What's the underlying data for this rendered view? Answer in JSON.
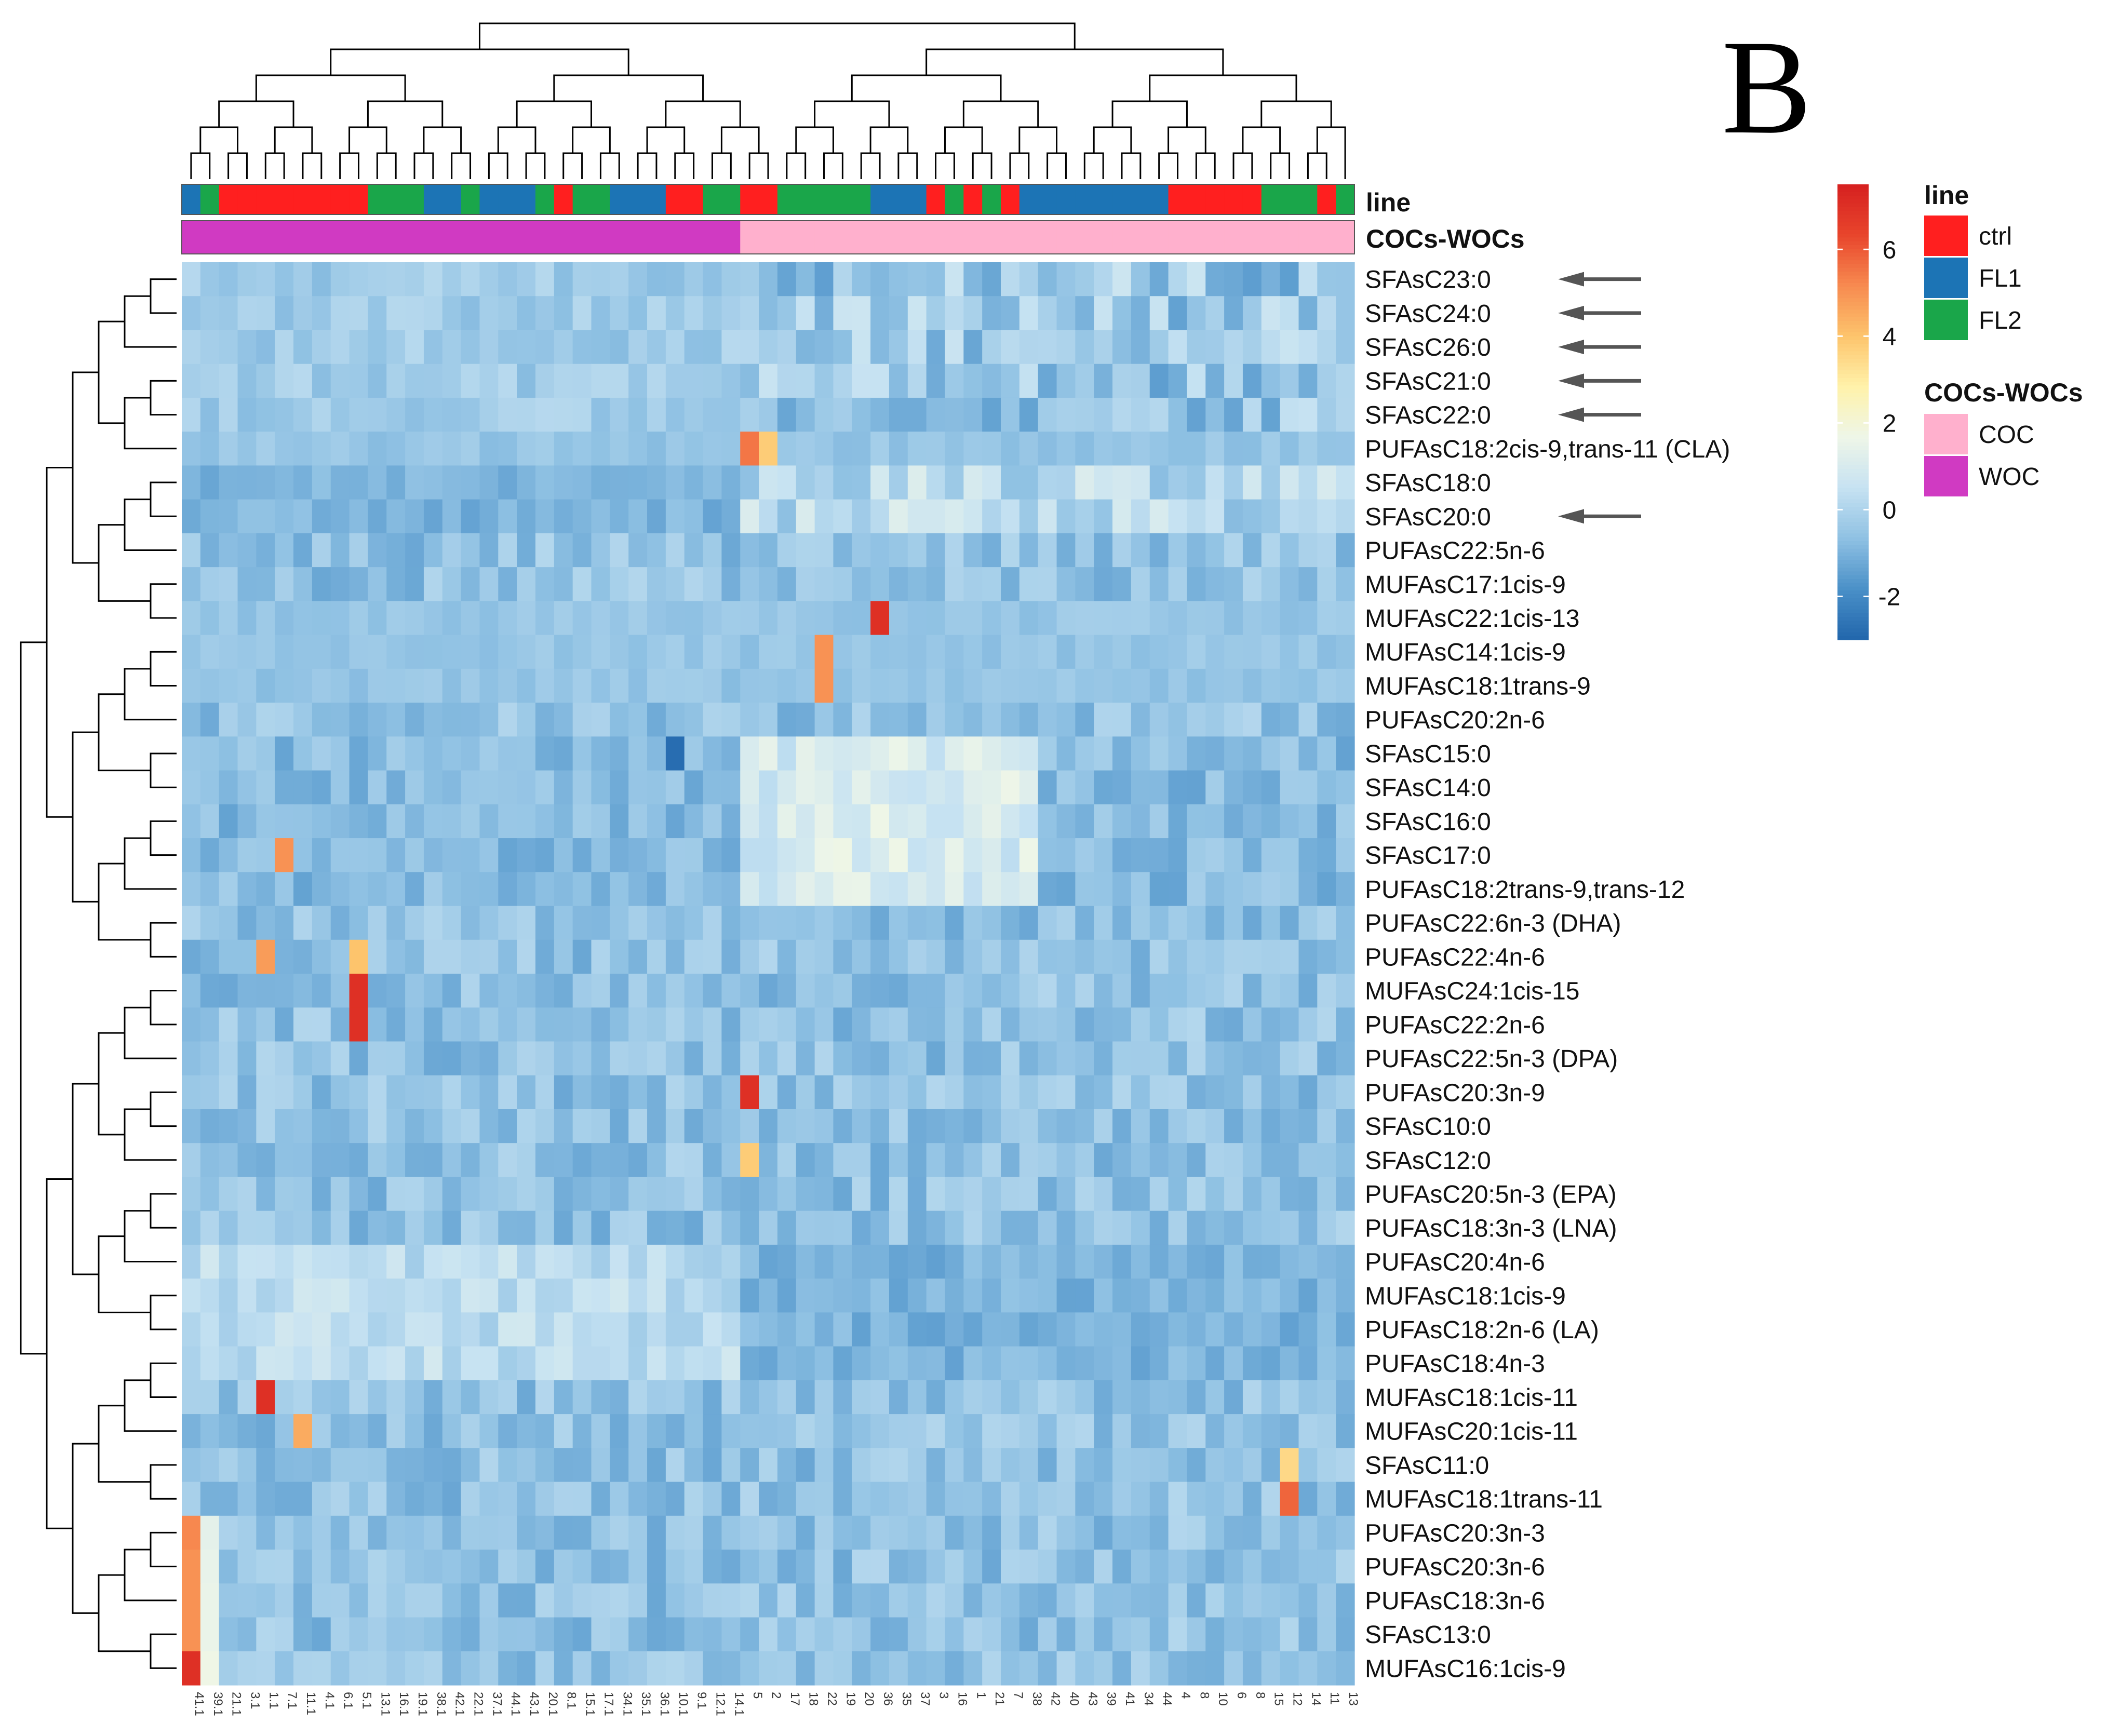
{
  "panel_letter": "B",
  "chart_data": {
    "type": "heatmap",
    "title": "",
    "rows": [
      "SFAsC23:0",
      "SFAsC24:0",
      "SFAsC26:0",
      "SFAsC21:0",
      "SFAsC22:0",
      "PUFAsC18:2cis-9,trans-11 (CLA)",
      "SFAsC18:0",
      "SFAsC20:0",
      "PUFAsC22:5n-6",
      "MUFAsC17:1cis-9",
      "MUFAsC22:1cis-13",
      "MUFAsC14:1cis-9",
      "MUFAsC18:1trans-9",
      "PUFAsC20:2n-6",
      "SFAsC15:0",
      "SFAsC14:0",
      "SFAsC16:0",
      "SFAsC17:0",
      "PUFAsC18:2trans-9,trans-12",
      "PUFAsC22:6n-3 (DHA)",
      "PUFAsC22:4n-6",
      "MUFAsC24:1cis-15",
      "PUFAsC22:2n-6",
      "PUFAsC22:5n-3 (DPA)",
      "PUFAsC20:3n-9",
      "SFAsC10:0",
      "SFAsC12:0",
      "PUFAsC20:5n-3 (EPA)",
      "PUFAsC18:3n-3 (LNA)",
      "PUFAsC20:4n-6",
      "MUFAsC18:1cis-9",
      "PUFAsC18:2n-6 (LA)",
      "PUFAsC18:4n-3",
      "MUFAsC18:1cis-11",
      "MUFAsC20:1cis-11",
      "SFAsC11:0",
      "MUFAsC18:1trans-11",
      "PUFAsC20:3n-3",
      "PUFAsC20:3n-6",
      "PUFAsC18:3n-6",
      "SFAsC13:0",
      "MUFAsC16:1cis-9"
    ],
    "columns": [
      "41.1",
      "39.1",
      "21.1",
      "3.1",
      "1.1",
      "7.1",
      "11.1",
      "4.1",
      "6.1",
      "5.1",
      "13.1",
      "16.1",
      "19.1",
      "38.1",
      "42.1",
      "22.1",
      "37.1",
      "44.1",
      "43.1",
      "20.1",
      "8.1",
      "15.1",
      "17.1",
      "34.1",
      "35.1",
      "36.1",
      "10.1",
      "9.1",
      "12.1",
      "14.1",
      "5",
      "2",
      "17",
      "18",
      "22",
      "19",
      "20",
      "36",
      "35",
      "37",
      "3",
      "16",
      "1",
      "21",
      "7",
      "38",
      "42",
      "40",
      "43",
      "39",
      "41",
      "34",
      "44",
      "4",
      "8",
      "10",
      "6",
      "8",
      "15",
      "12",
      "14",
      "11",
      "13"
    ],
    "annotations": {
      "line": [
        "FL1",
        "FL2",
        "ctrl",
        "ctrl",
        "ctrl",
        "ctrl",
        "ctrl",
        "ctrl",
        "ctrl",
        "ctrl",
        "FL2",
        "FL2",
        "FL2",
        "FL1",
        "FL1",
        "FL2",
        "FL1",
        "FL1",
        "FL1",
        "FL2",
        "ctrl",
        "FL2",
        "FL2",
        "FL1",
        "FL1",
        "FL1",
        "ctrl",
        "ctrl",
        "FL2",
        "FL2",
        "ctrl",
        "ctrl",
        "FL2",
        "FL2",
        "FL2",
        "FL2",
        "FL2",
        "FL1",
        "FL1",
        "FL1",
        "ctrl",
        "FL2",
        "ctrl",
        "FL2",
        "ctrl",
        "FL1",
        "FL1",
        "FL1",
        "FL1",
        "FL1",
        "FL1",
        "FL1",
        "FL1",
        "ctrl",
        "ctrl",
        "ctrl",
        "ctrl",
        "ctrl",
        "FL2",
        "FL2",
        "FL2",
        "ctrl",
        "FL2"
      ],
      "cocs_wocs": [
        "WOC",
        "WOC",
        "WOC",
        "WOC",
        "WOC",
        "WOC",
        "WOC",
        "WOC",
        "WOC",
        "WOC",
        "WOC",
        "WOC",
        "WOC",
        "WOC",
        "WOC",
        "WOC",
        "WOC",
        "WOC",
        "WOC",
        "WOC",
        "WOC",
        "WOC",
        "WOC",
        "WOC",
        "WOC",
        "WOC",
        "WOC",
        "WOC",
        "WOC",
        "WOC",
        "COC",
        "COC",
        "COC",
        "COC",
        "COC",
        "COC",
        "COC",
        "COC",
        "COC",
        "COC",
        "COC",
        "COC",
        "COC",
        "COC",
        "COC",
        "COC",
        "COC",
        "COC",
        "COC",
        "COC",
        "COC",
        "COC",
        "COC",
        "COC",
        "COC",
        "COC",
        "COC",
        "COC",
        "COC",
        "COC",
        "COC",
        "COC",
        "COC"
      ]
    },
    "annotation_labels": [
      "line",
      "COCs-WOCs"
    ],
    "arrowed_rows": [
      "SFAsC23:0",
      "SFAsC24:0",
      "SFAsC26:0",
      "SFAsC21:0",
      "SFAsC22:0",
      "SFAsC20:0"
    ],
    "color_scale": {
      "min": -3,
      "max": 7.5,
      "ticks": [
        -2,
        0,
        2,
        4,
        6
      ],
      "tick_labels": [
        "-2",
        "0",
        "2",
        "4",
        "6"
      ],
      "colors": [
        "#2166ac",
        "#4a90c8",
        "#8fc1e3",
        "#c6e2f2",
        "#eef6e8",
        "#fff2aa",
        "#fdc46c",
        "#f78a50",
        "#e8452c",
        "#d62020"
      ]
    },
    "legend": {
      "line_title": "line",
      "line_items": [
        {
          "label": "ctrl",
          "color": "#ff1f1f"
        },
        {
          "label": "FL1",
          "color": "#1c74b5"
        },
        {
          "label": "FL2",
          "color": "#1aa64a"
        }
      ],
      "group_title": "COCs-WOCs",
      "group_items": [
        {
          "label": "COC",
          "color": "#ffb0cd"
        },
        {
          "label": "WOC",
          "color": "#d03ac2"
        }
      ]
    },
    "notable_cells": [
      {
        "row": "PUFAsC18:2cis-9,trans-11 (CLA)",
        "column": "5",
        "value": 5.5
      },
      {
        "row": "PUFAsC18:2cis-9,trans-11 (CLA)",
        "column": "2",
        "value": 3.8
      },
      {
        "row": "MUFAsC22:1cis-13",
        "column": "36",
        "value": 7.0
      },
      {
        "row": "MUFAsC14:1cis-9",
        "column": "22",
        "value": 5.0
      },
      {
        "row": "MUFAsC18:1trans-9",
        "column": "22",
        "value": 5.0
      },
      {
        "row": "SFAsC15:0",
        "column": "10.1",
        "value": -2.8
      },
      {
        "row": "SFAsC17:0",
        "column": "7.1",
        "value": 5.0
      },
      {
        "row": "PUFAsC22:4n-6",
        "column": "1.1",
        "value": 4.8
      },
      {
        "row": "PUFAsC22:4n-6",
        "column": "5.1",
        "value": 4.0
      },
      {
        "row": "MUFAsC24:1cis-15",
        "column": "5.1",
        "value": 7.0
      },
      {
        "row": "PUFAsC22:2n-6",
        "column": "5.1",
        "value": 7.0
      },
      {
        "row": "PUFAsC20:3n-9",
        "column": "5",
        "value": 7.0
      },
      {
        "row": "SFAsC12:0",
        "column": "5",
        "value": 3.8
      },
      {
        "row": "MUFAsC18:1cis-11",
        "column": "1.1",
        "value": 7.0
      },
      {
        "row": "MUFAsC20:1cis-11",
        "column": "11.1",
        "value": 4.5
      },
      {
        "row": "SFAsC11:0",
        "column": "12",
        "value": 3.5
      },
      {
        "row": "MUFAsC18:1trans-11",
        "column": "12",
        "value": 5.8
      },
      {
        "row": "PUFAsC20:3n-3",
        "column": "41.1",
        "value": 5.2
      },
      {
        "row": "PUFAsC20:3n-6",
        "column": "41.1",
        "value": 5.0
      },
      {
        "row": "PUFAsC18:3n-6",
        "column": "41.1",
        "value": 5.0
      },
      {
        "row": "SFAsC13:0",
        "column": "41.1",
        "value": 5.0
      },
      {
        "row": "MUFAsC16:1cis-9",
        "column": "41.1",
        "value": 7.0
      }
    ]
  }
}
